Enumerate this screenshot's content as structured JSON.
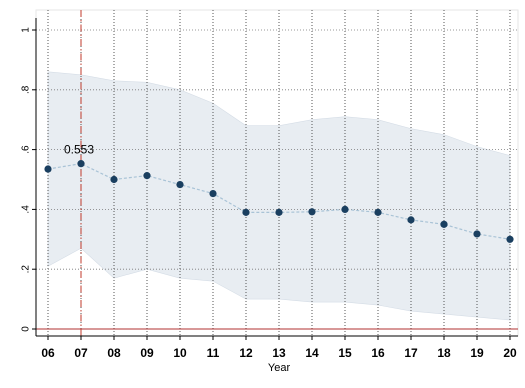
{
  "chart_data": {
    "type": "line",
    "xlabel": "Year",
    "ylabel": "",
    "title": "",
    "categories": [
      "06",
      "07",
      "08",
      "09",
      "10",
      "11",
      "12",
      "13",
      "14",
      "15",
      "16",
      "17",
      "18",
      "19",
      "20"
    ],
    "series": [
      {
        "values": [
          0.535,
          0.553,
          0.5,
          0.513,
          0.483,
          0.453,
          0.39,
          0.39,
          0.392,
          0.4,
          0.39,
          0.365,
          0.35,
          0.318,
          0.3
        ]
      }
    ],
    "ci_upper": [
      0.86,
      0.85,
      0.83,
      0.825,
      0.8,
      0.755,
      0.68,
      0.68,
      0.7,
      0.71,
      0.7,
      0.67,
      0.65,
      0.61,
      0.58
    ],
    "ci_lower": [
      0.21,
      0.27,
      0.17,
      0.2,
      0.17,
      0.16,
      0.1,
      0.1,
      0.09,
      0.09,
      0.08,
      0.06,
      0.05,
      0.04,
      0.03
    ],
    "ylim": [
      0,
      1
    ],
    "yticks": [
      {
        "value": 0,
        "label": "0"
      },
      {
        "value": 0.2,
        "label": ".2"
      },
      {
        "value": 0.4,
        "label": ".4"
      },
      {
        "value": 0.6,
        "label": ".6"
      },
      {
        "value": 0.8,
        "label": ".8"
      },
      {
        "value": 1,
        "label": "1"
      }
    ],
    "reference_vertical": "07",
    "reference_horizontal": 0,
    "annotation": {
      "text": "0.553",
      "at": "07"
    },
    "grid": true,
    "colors": {
      "line": "#a9c3d6",
      "marker": "#1a3f60",
      "ci_fill": "#e8edf2",
      "vline": "#c0392b",
      "hline": "#b03030"
    }
  }
}
